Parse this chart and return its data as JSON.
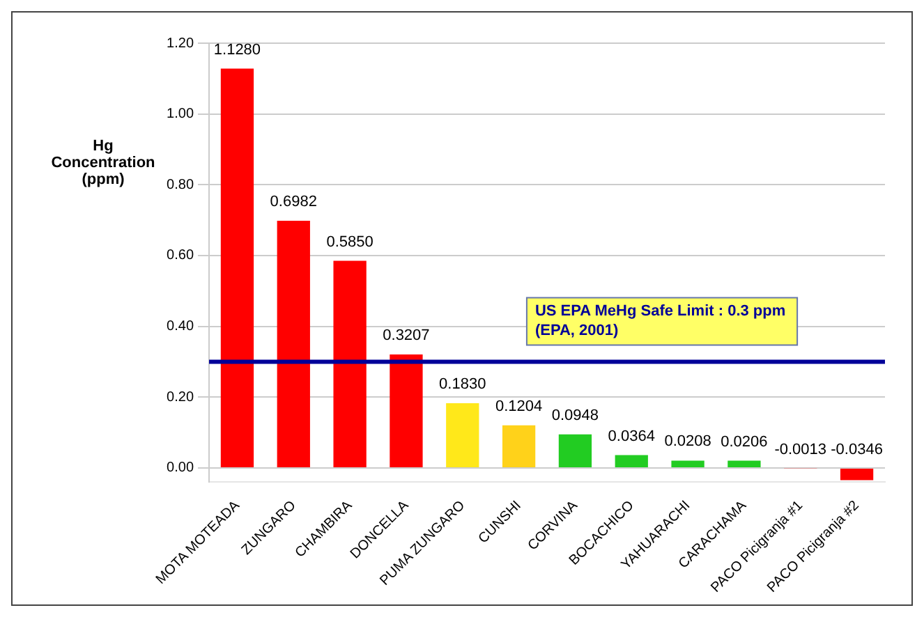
{
  "chart_data": {
    "type": "bar",
    "ylabel": "Hg Concentration (ppm)",
    "categories": [
      "MOTA MOTEADA",
      "ZUNGARO",
      "CHAMBIRA",
      "DONCELLA",
      "PUMA ZUNGARO",
      "CUNSHI",
      "CORVINA",
      "BOCACHICO",
      "YAHUARACHI",
      "CARACHAMA",
      "PACO Picigranja #1",
      "PACO Picigranja #2"
    ],
    "values": [
      1.128,
      0.6982,
      0.585,
      0.3207,
      0.183,
      0.1204,
      0.0948,
      0.0364,
      0.0208,
      0.0206,
      -0.0013,
      -0.0346
    ],
    "value_labels": [
      "1.1280",
      "0.6982",
      "0.5850",
      "0.3207",
      "0.1830",
      "0.1204",
      "0.0948",
      "0.0364",
      "0.0208",
      "0.0206",
      "-0.0013",
      "-0.0346"
    ],
    "colors": [
      "#ff0000",
      "#ff0000",
      "#ff0000",
      "#ff0000",
      "#ffe81a",
      "#ffd21a",
      "#22cc22",
      "#22cc22",
      "#22cc22",
      "#22cc22",
      "#ff0000",
      "#ff0000"
    ],
    "ylim": [
      -0.04,
      1.2
    ],
    "yticks": [
      {
        "value": 0,
        "label": "0.00"
      },
      {
        "value": 0.2,
        "label": "0.20"
      },
      {
        "value": 0.4,
        "label": "0.40"
      },
      {
        "value": 0.6,
        "label": "0.60"
      },
      {
        "value": 0.8,
        "label": "0.80"
      },
      {
        "value": 1,
        "label": "1.00"
      },
      {
        "value": 1.2,
        "label": "1.20"
      }
    ],
    "ref_lines": [
      {
        "axis": "y",
        "value": 0.3,
        "label": "US EPA MeHg Safe Limit : 0.3 ppm\n(EPA, 2001)",
        "color": "#000099"
      }
    ],
    "grid": "y",
    "legend": false
  }
}
